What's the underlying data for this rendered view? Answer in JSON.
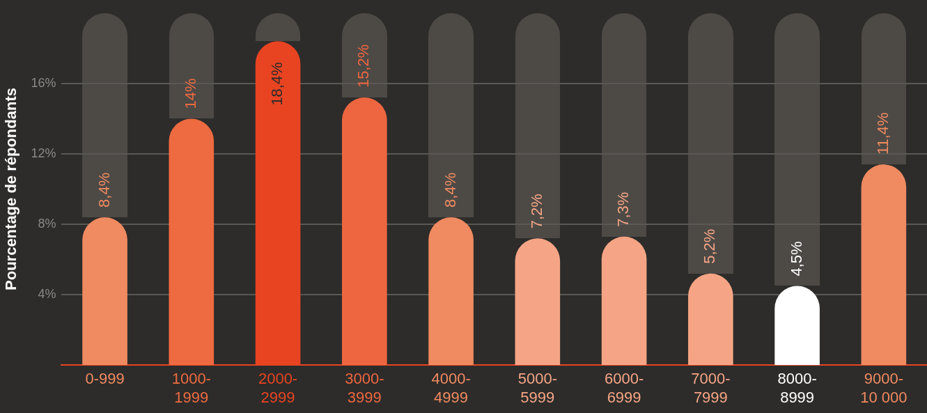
{
  "chart_data": {
    "type": "bar",
    "ylabel": "Pourcentage de répondants",
    "categories": [
      "0-999",
      "1000-\n1999",
      "2000-\n2999",
      "3000-\n3999",
      "4000-\n4999",
      "5000-\n5999",
      "6000-\n6999",
      "7000-\n7999",
      "8000-\n8999",
      "9000-\n10 000"
    ],
    "values": [
      8.4,
      14,
      18.4,
      15.2,
      8.4,
      7.2,
      7.3,
      5.2,
      4.5,
      11.4
    ],
    "colors": [
      "#f08a60",
      "#ee6a40",
      "#e84422",
      "#ee6640",
      "#f08a60",
      "#f5a585",
      "#f5a585",
      "#f5a585",
      "#ffffff",
      "#f08a60"
    ],
    "value_labels": [
      "8,4%",
      "14%",
      "18,4%",
      "15,2%",
      "8,4%",
      "7,2%",
      "7,3%",
      "5,2%",
      "4,5%",
      "11,4%"
    ],
    "ylim": [
      0,
      20
    ],
    "yticks": [
      {
        "value": 4,
        "label": "4%"
      },
      {
        "value": 8,
        "label": "8%"
      },
      {
        "value": 12,
        "label": "12%"
      },
      {
        "value": 16,
        "label": "16%"
      }
    ],
    "grid": "y",
    "legend": false
  }
}
